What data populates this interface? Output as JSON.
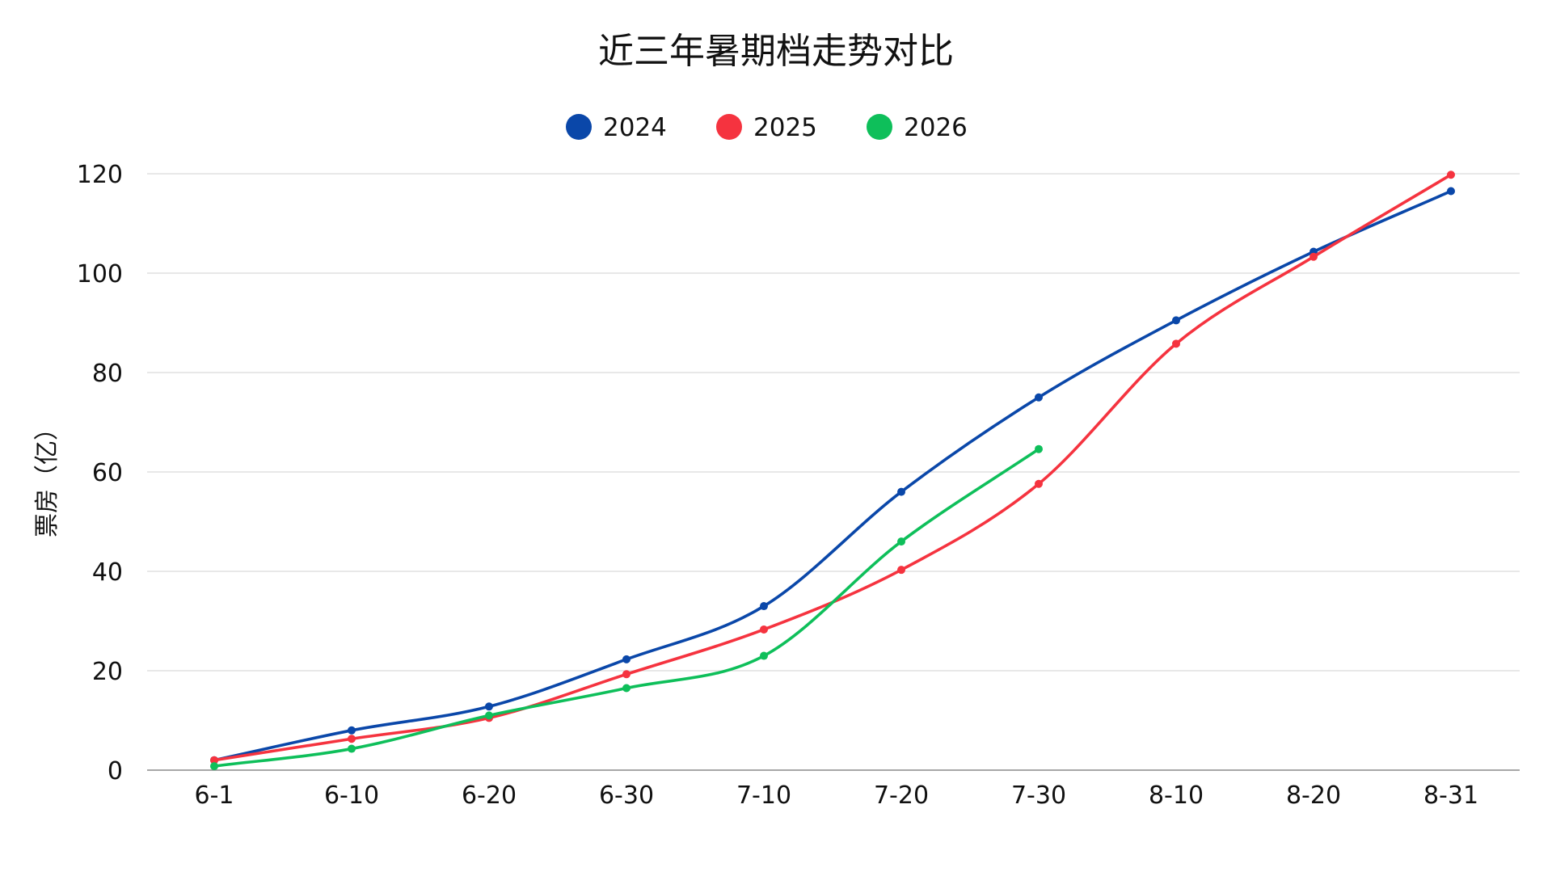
{
  "chart_data": {
    "type": "line",
    "title": "近三年暑期档走势对比",
    "xlabel": "",
    "ylabel": "票房（亿）",
    "ylim": [
      0,
      120
    ],
    "yticks": [
      0,
      20,
      40,
      60,
      80,
      100,
      120
    ],
    "grid": true,
    "legend_position": "top-center",
    "categories": [
      "6-1",
      "6-10",
      "6-20",
      "6-30",
      "7-10",
      "7-20",
      "7-30",
      "8-10",
      "8-20",
      "8-31"
    ],
    "series": [
      {
        "name": "2024",
        "color": "#0a47a9",
        "values": [
          2.0,
          8.0,
          12.8,
          22.3,
          33.0,
          56.0,
          75.0,
          90.5,
          104.3,
          116.5
        ]
      },
      {
        "name": "2025",
        "color": "#f5333f",
        "values": [
          2.0,
          6.3,
          10.5,
          19.3,
          28.3,
          40.3,
          57.6,
          85.8,
          103.3,
          119.8
        ]
      },
      {
        "name": "2026",
        "color": "#0ebf5a",
        "values": [
          0.8,
          4.3,
          11.0,
          16.5,
          23.0,
          46.0,
          64.6,
          null,
          null,
          null
        ]
      }
    ]
  }
}
